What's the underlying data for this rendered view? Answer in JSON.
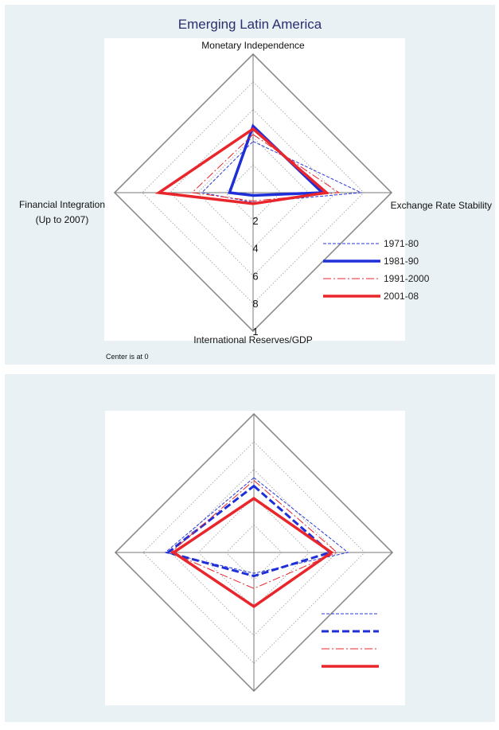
{
  "chart_data": [
    {
      "type": "radar",
      "title": "Emerging Latin America",
      "axes": [
        "Monetary Independence",
        "Exchange Rate Stability",
        "International Reserves/GDP",
        "Financial Integration\n(Up to 2007)"
      ],
      "rlim": [
        0,
        1
      ],
      "scale_tick_labels": [
        "2",
        "4",
        "6",
        "8",
        "1"
      ],
      "grid": true,
      "legend_position": "bottom-right",
      "note": "Center is at 0",
      "series": [
        {
          "name": "1971-80",
          "color": "#2b3bd6",
          "style": "dashed-thin",
          "values": [
            0.37,
            0.78,
            0.07,
            0.37
          ]
        },
        {
          "name": "1981-90",
          "color": "#1f2fd8",
          "style": "solid-thick",
          "values": [
            0.48,
            0.5,
            0.02,
            0.17
          ]
        },
        {
          "name": "1991-2000",
          "color": "#e8262b",
          "style": "dashdot-thin",
          "values": [
            0.42,
            0.62,
            0.06,
            0.44
          ]
        },
        {
          "name": "2001-08",
          "color": "#e8262b",
          "style": "solid-thick",
          "values": [
            0.46,
            0.53,
            0.08,
            0.68
          ]
        }
      ]
    },
    {
      "type": "radar",
      "axes": [
        "Monetary Independence",
        "Exchange Rate Stability",
        "International Reserves/GDP",
        "Financial Integration"
      ],
      "rlim": [
        0,
        1
      ],
      "grid": true,
      "legend_position": "bottom-right",
      "series": [
        {
          "color": "#2b3bd6",
          "style": "dashed-thin",
          "values": [
            0.54,
            0.68,
            0.15,
            0.64
          ]
        },
        {
          "color": "#1f2fd8",
          "style": "dashed-thick",
          "values": [
            0.48,
            0.55,
            0.17,
            0.62
          ]
        },
        {
          "color": "#e8262b",
          "style": "dashdot-thin",
          "values": [
            0.52,
            0.6,
            0.26,
            0.6
          ]
        },
        {
          "color": "#e8262b",
          "style": "solid-thick",
          "values": [
            0.39,
            0.56,
            0.39,
            0.58
          ]
        }
      ]
    }
  ]
}
